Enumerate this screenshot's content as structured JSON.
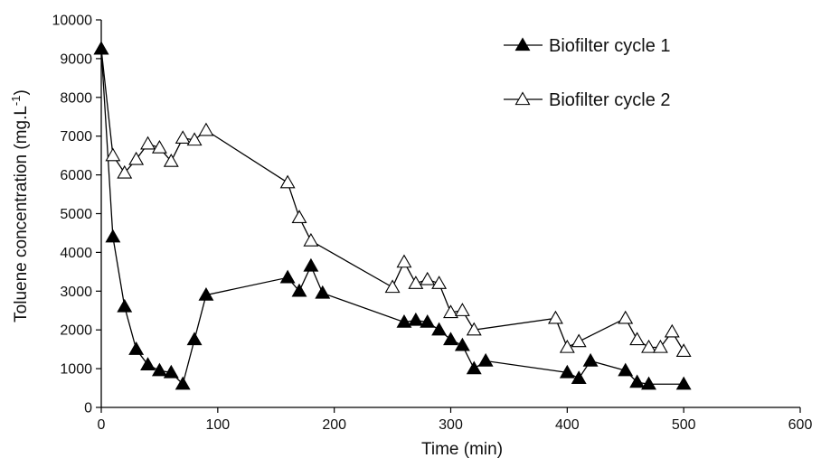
{
  "chart_data": {
    "type": "line",
    "title": "",
    "xlabel": "Time (min)",
    "ylabel": "Toluene concentration (mg.L",
    "ylabel_sup": "-1",
    "ylabel_close": ")",
    "xlim": [
      0,
      600
    ],
    "ylim": [
      0,
      10000
    ],
    "x_ticks": [
      "0",
      "100",
      "200",
      "300",
      "400",
      "500",
      "600"
    ],
    "y_ticks": [
      "0",
      "1000",
      "2000",
      "3000",
      "4000",
      "5000",
      "6000",
      "7000",
      "8000",
      "9000",
      "10000"
    ],
    "grid": false,
    "legend_position": "top-right",
    "series": [
      {
        "name": "Biofilter cycle 1",
        "marker": "filled-triangle",
        "color": "#000000",
        "x": [
          0,
          10,
          20,
          30,
          40,
          50,
          60,
          70,
          80,
          90,
          160,
          170,
          180,
          190,
          260,
          270,
          280,
          290,
          300,
          310,
          320,
          330,
          400,
          410,
          420,
          450,
          460,
          470,
          500
        ],
        "y": [
          9250,
          4400,
          2600,
          1500,
          1100,
          950,
          900,
          600,
          1750,
          2900,
          3350,
          3000,
          3650,
          2950,
          2200,
          2250,
          2200,
          2000,
          1750,
          1600,
          1000,
          1200,
          900,
          750,
          1200,
          950,
          650,
          600,
          600
        ]
      },
      {
        "name": "Biofilter cycle 2",
        "marker": "open-triangle",
        "color": "#000000",
        "x": [
          0,
          10,
          20,
          30,
          40,
          50,
          60,
          70,
          80,
          90,
          160,
          170,
          180,
          250,
          260,
          270,
          280,
          290,
          300,
          310,
          320,
          390,
          400,
          410,
          450,
          460,
          470,
          480,
          490,
          500
        ],
        "y": [
          9250,
          6500,
          6050,
          6400,
          6800,
          6700,
          6350,
          6950,
          6900,
          7150,
          5800,
          4900,
          4300,
          3100,
          3750,
          3200,
          3300,
          3200,
          2450,
          2500,
          2000,
          2300,
          1550,
          1700,
          2300,
          1750,
          1550,
          1550,
          1950,
          1450
        ]
      }
    ]
  }
}
